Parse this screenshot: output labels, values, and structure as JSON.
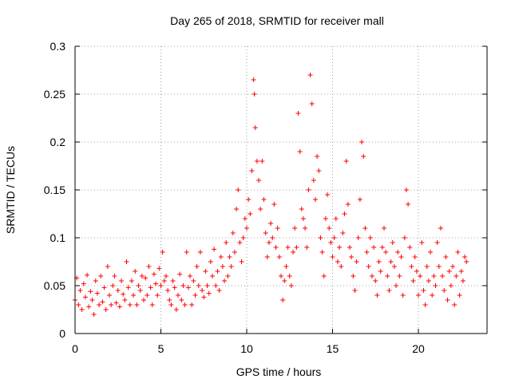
{
  "chart_data": {
    "type": "scatter",
    "title": "Day 265 of 2018, SRMTID for receiver mall",
    "xlabel": "GPS time / hours",
    "ylabel": "SRMTID / TECUs",
    "xlim": [
      0,
      24
    ],
    "ylim": [
      0,
      0.3
    ],
    "xticks": [
      0,
      5,
      10,
      15,
      20
    ],
    "xtick_labels": [
      "0",
      "5",
      "10",
      "15",
      "20"
    ],
    "yticks": [
      0,
      0.05,
      0.1,
      0.15,
      0.2,
      0.25,
      0.3
    ],
    "ytick_labels": [
      "0",
      "0.05",
      "0.1",
      "0.15",
      "0.2",
      "0.25",
      "0.3"
    ],
    "grid": true,
    "marker": "plus",
    "color": "#ff0000",
    "series": [
      {
        "name": "SRMTID",
        "points": [
          [
            0.0,
            0.035
          ],
          [
            0.1,
            0.058
          ],
          [
            0.2,
            0.03
          ],
          [
            0.3,
            0.045
          ],
          [
            0.4,
            0.025
          ],
          [
            0.5,
            0.052
          ],
          [
            0.6,
            0.038
          ],
          [
            0.7,
            0.061
          ],
          [
            0.8,
            0.028
          ],
          [
            0.9,
            0.044
          ],
          [
            1.0,
            0.035
          ],
          [
            1.1,
            0.02
          ],
          [
            1.2,
            0.055
          ],
          [
            1.3,
            0.042
          ],
          [
            1.4,
            0.03
          ],
          [
            1.5,
            0.06
          ],
          [
            1.6,
            0.033
          ],
          [
            1.7,
            0.048
          ],
          [
            1.8,
            0.025
          ],
          [
            1.9,
            0.07
          ],
          [
            2.0,
            0.04
          ],
          [
            2.1,
            0.03
          ],
          [
            2.2,
            0.05
          ],
          [
            2.3,
            0.06
          ],
          [
            2.4,
            0.032
          ],
          [
            2.5,
            0.045
          ],
          [
            2.6,
            0.028
          ],
          [
            2.7,
            0.055
          ],
          [
            2.8,
            0.041
          ],
          [
            2.9,
            0.035
          ],
          [
            3.0,
            0.075
          ],
          [
            3.1,
            0.048
          ],
          [
            3.2,
            0.03
          ],
          [
            3.3,
            0.055
          ],
          [
            3.4,
            0.04
          ],
          [
            3.5,
            0.065
          ],
          [
            3.6,
            0.03
          ],
          [
            3.7,
            0.05
          ],
          [
            3.8,
            0.045
          ],
          [
            3.9,
            0.06
          ],
          [
            4.0,
            0.035
          ],
          [
            4.1,
            0.058
          ],
          [
            4.2,
            0.04
          ],
          [
            4.3,
            0.07
          ],
          [
            4.4,
            0.048
          ],
          [
            4.5,
            0.03
          ],
          [
            4.6,
            0.062
          ],
          [
            4.7,
            0.052
          ],
          [
            4.8,
            0.04
          ],
          [
            4.9,
            0.068
          ],
          [
            5.0,
            0.05
          ],
          [
            5.1,
            0.085
          ],
          [
            5.2,
            0.055
          ],
          [
            5.3,
            0.06
          ],
          [
            5.4,
            0.045
          ],
          [
            5.5,
            0.035
          ],
          [
            5.6,
            0.03
          ],
          [
            5.7,
            0.055
          ],
          [
            5.8,
            0.048
          ],
          [
            5.9,
            0.025
          ],
          [
            6.0,
            0.04
          ],
          [
            6.1,
            0.062
          ],
          [
            6.2,
            0.035
          ],
          [
            6.3,
            0.05
          ],
          [
            6.4,
            0.03
          ],
          [
            6.5,
            0.085
          ],
          [
            6.6,
            0.048
          ],
          [
            6.7,
            0.06
          ],
          [
            6.8,
            0.03
          ],
          [
            6.9,
            0.055
          ],
          [
            7.0,
            0.04
          ],
          [
            7.1,
            0.07
          ],
          [
            7.2,
            0.05
          ],
          [
            7.3,
            0.085
          ],
          [
            7.4,
            0.045
          ],
          [
            7.5,
            0.038
          ],
          [
            7.6,
            0.065
          ],
          [
            7.7,
            0.05
          ],
          [
            7.8,
            0.042
          ],
          [
            7.9,
            0.075
          ],
          [
            8.0,
            0.06
          ],
          [
            8.1,
            0.088
          ],
          [
            8.2,
            0.05
          ],
          [
            8.3,
            0.065
          ],
          [
            8.4,
            0.045
          ],
          [
            8.5,
            0.08
          ],
          [
            8.6,
            0.07
          ],
          [
            8.7,
            0.055
          ],
          [
            8.8,
            0.095
          ],
          [
            8.9,
            0.06
          ],
          [
            9.0,
            0.08
          ],
          [
            9.1,
            0.07
          ],
          [
            9.2,
            0.105
          ],
          [
            9.3,
            0.085
          ],
          [
            9.4,
            0.13
          ],
          [
            9.5,
            0.15
          ],
          [
            9.6,
            0.095
          ],
          [
            9.7,
            0.075
          ],
          [
            9.8,
            0.1
          ],
          [
            9.9,
            0.12
          ],
          [
            10.0,
            0.11
          ],
          [
            10.1,
            0.14
          ],
          [
            10.2,
            0.125
          ],
          [
            10.3,
            0.17
          ],
          [
            10.4,
            0.265
          ],
          [
            10.45,
            0.25
          ],
          [
            10.5,
            0.215
          ],
          [
            10.6,
            0.18
          ],
          [
            10.7,
            0.16
          ],
          [
            10.8,
            0.13
          ],
          [
            10.9,
            0.18
          ],
          [
            11.0,
            0.14
          ],
          [
            11.1,
            0.105
          ],
          [
            11.2,
            0.08
          ],
          [
            11.3,
            0.095
          ],
          [
            11.4,
            0.115
          ],
          [
            11.5,
            0.1
          ],
          [
            11.6,
            0.135
          ],
          [
            11.7,
            0.09
          ],
          [
            11.8,
            0.11
          ],
          [
            11.9,
            0.08
          ],
          [
            12.0,
            0.06
          ],
          [
            12.1,
            0.035
          ],
          [
            12.2,
            0.055
          ],
          [
            12.3,
            0.07
          ],
          [
            12.4,
            0.09
          ],
          [
            12.5,
            0.06
          ],
          [
            12.6,
            0.05
          ],
          [
            12.7,
            0.085
          ],
          [
            12.8,
            0.11
          ],
          [
            12.9,
            0.09
          ],
          [
            13.0,
            0.23
          ],
          [
            13.1,
            0.19
          ],
          [
            13.2,
            0.13
          ],
          [
            13.3,
            0.12
          ],
          [
            13.4,
            0.11
          ],
          [
            13.5,
            0.09
          ],
          [
            13.6,
            0.15
          ],
          [
            13.7,
            0.27
          ],
          [
            13.8,
            0.24
          ],
          [
            13.9,
            0.16
          ],
          [
            14.0,
            0.14
          ],
          [
            14.1,
            0.185
          ],
          [
            14.2,
            0.17
          ],
          [
            14.3,
            0.1
          ],
          [
            14.4,
            0.085
          ],
          [
            14.5,
            0.06
          ],
          [
            14.6,
            0.12
          ],
          [
            14.7,
            0.145
          ],
          [
            14.8,
            0.11
          ],
          [
            14.9,
            0.095
          ],
          [
            15.0,
            0.08
          ],
          [
            15.1,
            0.1
          ],
          [
            15.2,
            0.12
          ],
          [
            15.3,
            0.075
          ],
          [
            15.4,
            0.09
          ],
          [
            15.5,
            0.07
          ],
          [
            15.6,
            0.105
          ],
          [
            15.7,
            0.125
          ],
          [
            15.8,
            0.18
          ],
          [
            15.9,
            0.135
          ],
          [
            16.0,
            0.09
          ],
          [
            16.1,
            0.08
          ],
          [
            16.2,
            0.06
          ],
          [
            16.3,
            0.045
          ],
          [
            16.4,
            0.075
          ],
          [
            16.5,
            0.1
          ],
          [
            16.6,
            0.14
          ],
          [
            16.7,
            0.2
          ],
          [
            16.8,
            0.185
          ],
          [
            16.9,
            0.11
          ],
          [
            17.0,
            0.085
          ],
          [
            17.1,
            0.07
          ],
          [
            17.2,
            0.1
          ],
          [
            17.3,
            0.06
          ],
          [
            17.4,
            0.09
          ],
          [
            17.5,
            0.055
          ],
          [
            17.6,
            0.04
          ],
          [
            17.7,
            0.075
          ],
          [
            17.8,
            0.065
          ],
          [
            17.9,
            0.09
          ],
          [
            18.0,
            0.11
          ],
          [
            18.1,
            0.085
          ],
          [
            18.2,
            0.06
          ],
          [
            18.3,
            0.045
          ],
          [
            18.4,
            0.075
          ],
          [
            18.5,
            0.095
          ],
          [
            18.6,
            0.07
          ],
          [
            18.7,
            0.05
          ],
          [
            18.8,
            0.085
          ],
          [
            18.9,
            0.06
          ],
          [
            19.0,
            0.08
          ],
          [
            19.1,
            0.04
          ],
          [
            19.2,
            0.1
          ],
          [
            19.3,
            0.15
          ],
          [
            19.4,
            0.135
          ],
          [
            19.5,
            0.09
          ],
          [
            19.6,
            0.07
          ],
          [
            19.7,
            0.055
          ],
          [
            19.8,
            0.08
          ],
          [
            19.9,
            0.065
          ],
          [
            20.0,
            0.04
          ],
          [
            20.1,
            0.06
          ],
          [
            20.2,
            0.095
          ],
          [
            20.3,
            0.045
          ],
          [
            20.4,
            0.03
          ],
          [
            20.5,
            0.07
          ],
          [
            20.6,
            0.055
          ],
          [
            20.7,
            0.085
          ],
          [
            20.8,
            0.04
          ],
          [
            20.9,
            0.06
          ],
          [
            21.0,
            0.05
          ],
          [
            21.1,
            0.095
          ],
          [
            21.2,
            0.07
          ],
          [
            21.3,
            0.11
          ],
          [
            21.4,
            0.06
          ],
          [
            21.5,
            0.045
          ],
          [
            21.6,
            0.08
          ],
          [
            21.7,
            0.035
          ],
          [
            21.8,
            0.065
          ],
          [
            21.9,
            0.05
          ],
          [
            22.0,
            0.07
          ],
          [
            22.1,
            0.03
          ],
          [
            22.2,
            0.06
          ],
          [
            22.3,
            0.085
          ],
          [
            22.4,
            0.04
          ],
          [
            22.5,
            0.065
          ],
          [
            22.6,
            0.055
          ],
          [
            22.7,
            0.08
          ],
          [
            22.8,
            0.075
          ]
        ]
      }
    ]
  }
}
